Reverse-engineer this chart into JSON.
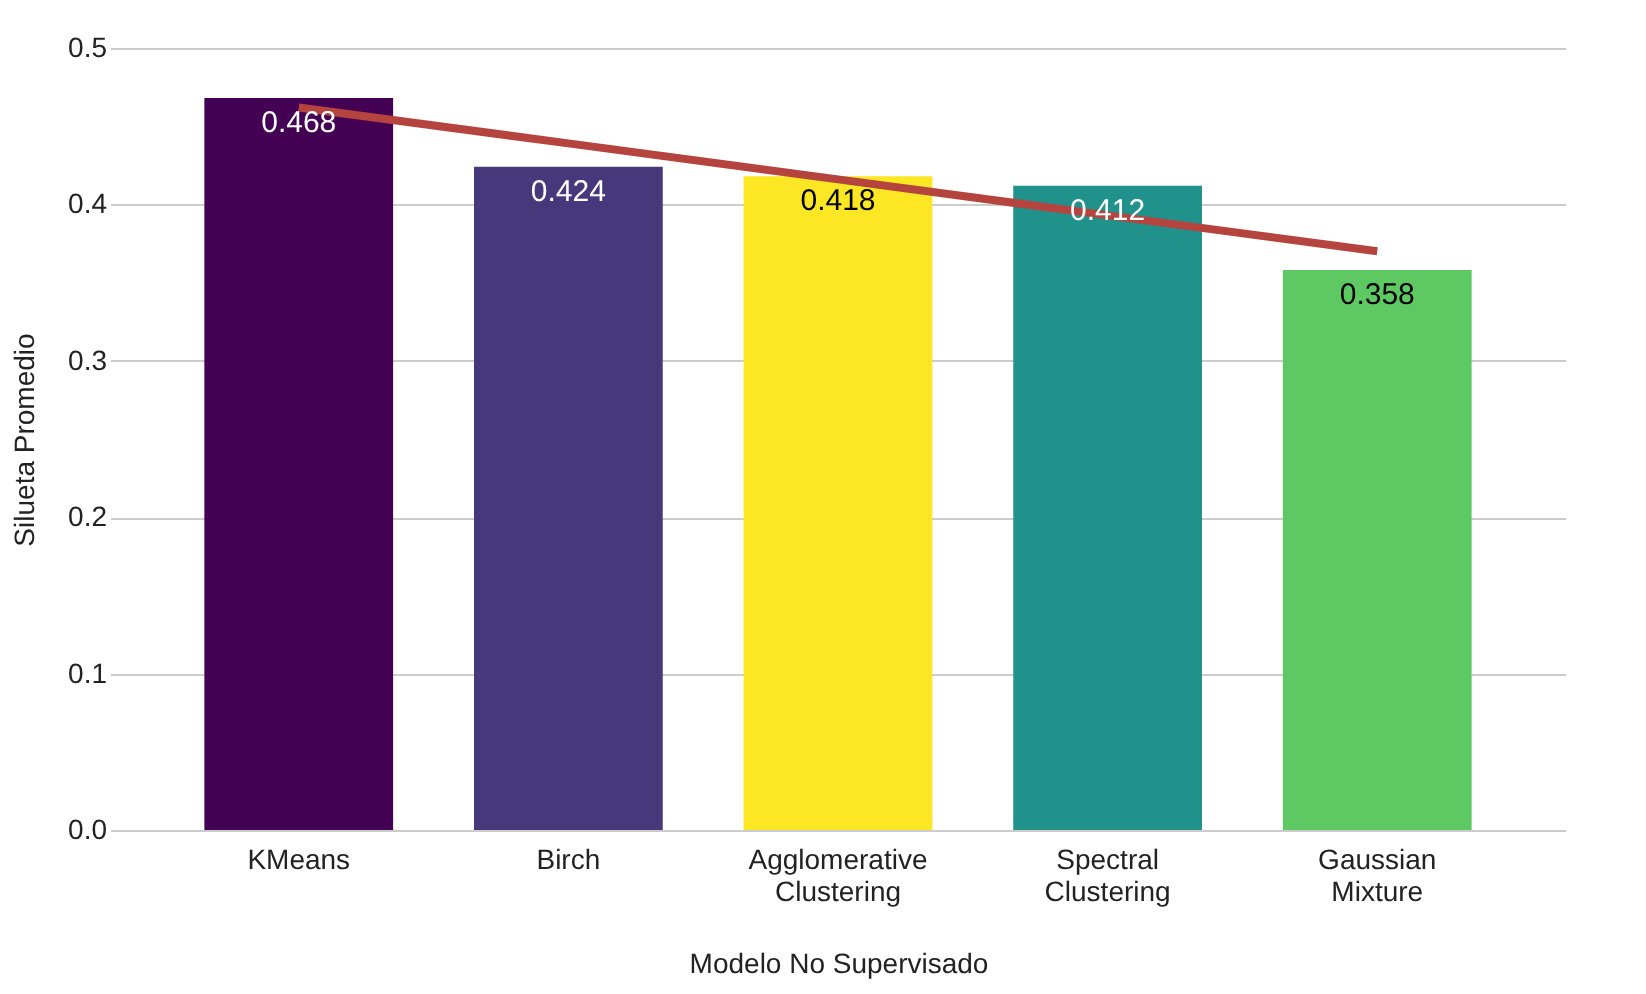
{
  "chart_data": {
    "type": "bar",
    "xlabel": "Modelo No Supervisado",
    "ylabel": "Silueta Promedio",
    "categories": [
      "KMeans",
      "Birch",
      "Agglomerative Clustering",
      "Spectral Clustering",
      "Gaussian Mixture"
    ],
    "series": [
      {
        "colors": [
          "#440154",
          "#46387a",
          "#fde725",
          "#21918c",
          "#5ec962"
        ],
        "values": [
          0.468,
          0.424,
          0.418,
          0.412,
          0.358
        ],
        "value_labels": [
          "0.468",
          "0.424",
          "0.418",
          "0.412",
          "0.358"
        ]
      },
      {
        "type": "line",
        "color": "#b5443f",
        "x": [
          "KMeans",
          "Birch",
          "Agglomerative Clustering",
          "Spectral Clustering",
          "Gaussian Mixture"
        ],
        "values": [
          0.462,
          0.439,
          0.416,
          0.393,
          0.37
        ]
      }
    ],
    "ylim": [
      0,
      0.5
    ],
    "yticks": [
      {
        "value": 0,
        "label": "0.0"
      },
      0.1,
      0.2,
      0.3,
      0.4,
      0.5
    ],
    "grid": "y",
    "marker": "none",
    "line_style": "solid"
  }
}
